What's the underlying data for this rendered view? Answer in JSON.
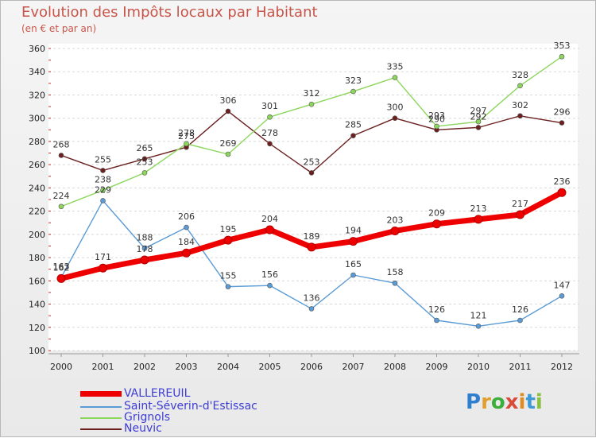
{
  "title": "Evolution des Impôts locaux par Habitant",
  "subtitle": "(en € et par an)",
  "chart_data": {
    "type": "line",
    "title": "Evolution des Impôts locaux par Habitant",
    "subtitle": "(en € et par an)",
    "x": [
      "2000",
      "2001",
      "2002",
      "2003",
      "2004",
      "2005",
      "2006",
      "2007",
      "2008",
      "2009",
      "2010",
      "2011",
      "2012"
    ],
    "ylim": [
      100,
      360
    ],
    "yticks": [
      100,
      120,
      140,
      160,
      180,
      200,
      220,
      240,
      260,
      280,
      300,
      320,
      340,
      360
    ],
    "grid": true,
    "legend_position": "bottom-left",
    "series": [
      {
        "name": "VALLEREUIL",
        "color": "#ee0000",
        "values": [
          162,
          171,
          178,
          184,
          195,
          204,
          189,
          194,
          203,
          209,
          213,
          217,
          236
        ]
      },
      {
        "name": "Saint-Séverin-d'Estissac",
        "color": "#5b9bd5",
        "values": [
          163,
          229,
          188,
          206,
          155,
          156,
          136,
          165,
          158,
          126,
          121,
          126,
          147
        ]
      },
      {
        "name": "Grignols",
        "color": "#8cd65c",
        "values": [
          224,
          238,
          253,
          278,
          269,
          301,
          312,
          323,
          335,
          293,
          297,
          328,
          353
        ]
      },
      {
        "name": "Neuvic",
        "color": "#6b1f1f",
        "values": [
          268,
          255,
          265,
          275,
          306,
          278,
          253,
          285,
          300,
          290,
          292,
          302,
          296
        ]
      }
    ]
  },
  "logo": {
    "letters": [
      {
        "ch": "P",
        "color": "#2f7fd0"
      },
      {
        "ch": "r",
        "color": "#e0a030"
      },
      {
        "ch": "o",
        "color": "#3cae3c"
      },
      {
        "ch": "x",
        "color": "#d84a3a"
      },
      {
        "ch": "i",
        "color": "#e08a20"
      },
      {
        "ch": "t",
        "color": "#3c9ad8"
      },
      {
        "ch": "i",
        "color": "#8ac040"
      }
    ]
  }
}
